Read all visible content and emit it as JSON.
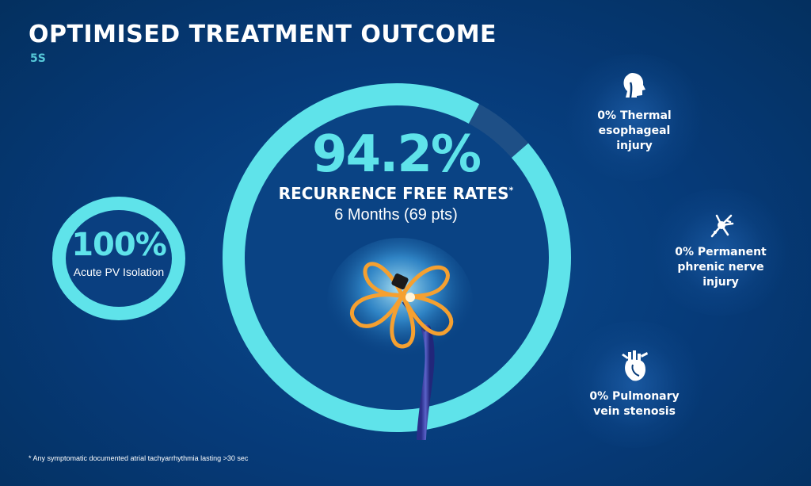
{
  "header": {
    "title": "OPTIMISED TREATMENT OUTCOME",
    "subtitle": "5S"
  },
  "acute_isolation": {
    "percent": "100%",
    "label": "Acute PV Isolation",
    "fraction": 1.0
  },
  "recurrence": {
    "percent": "94.2%",
    "label": "RECURRENCE FREE RATES",
    "asterisk": "*",
    "sublabel": "6 Months (69 pts)",
    "fraction": 0.942
  },
  "stats": [
    {
      "icon": "throat-icon",
      "line1": "0% Thermal",
      "line2": "esophageal",
      "line3": "injury"
    },
    {
      "icon": "nerve-icon",
      "line1": "0% Permanent",
      "line2": "phrenic nerve",
      "line3": "injury"
    },
    {
      "icon": "heart-icon",
      "line1": "0% Pulmonary",
      "line2": "vein stenosis",
      "line3": ""
    }
  ],
  "footnote": "* Any symptomatic documented atrial tachyarrhythmia lasting >30 sec",
  "colors": {
    "background": "#063a78",
    "accent": "#5fe3ea",
    "ring_remainder": "#1e4f86",
    "catheter": "#f5a030"
  }
}
